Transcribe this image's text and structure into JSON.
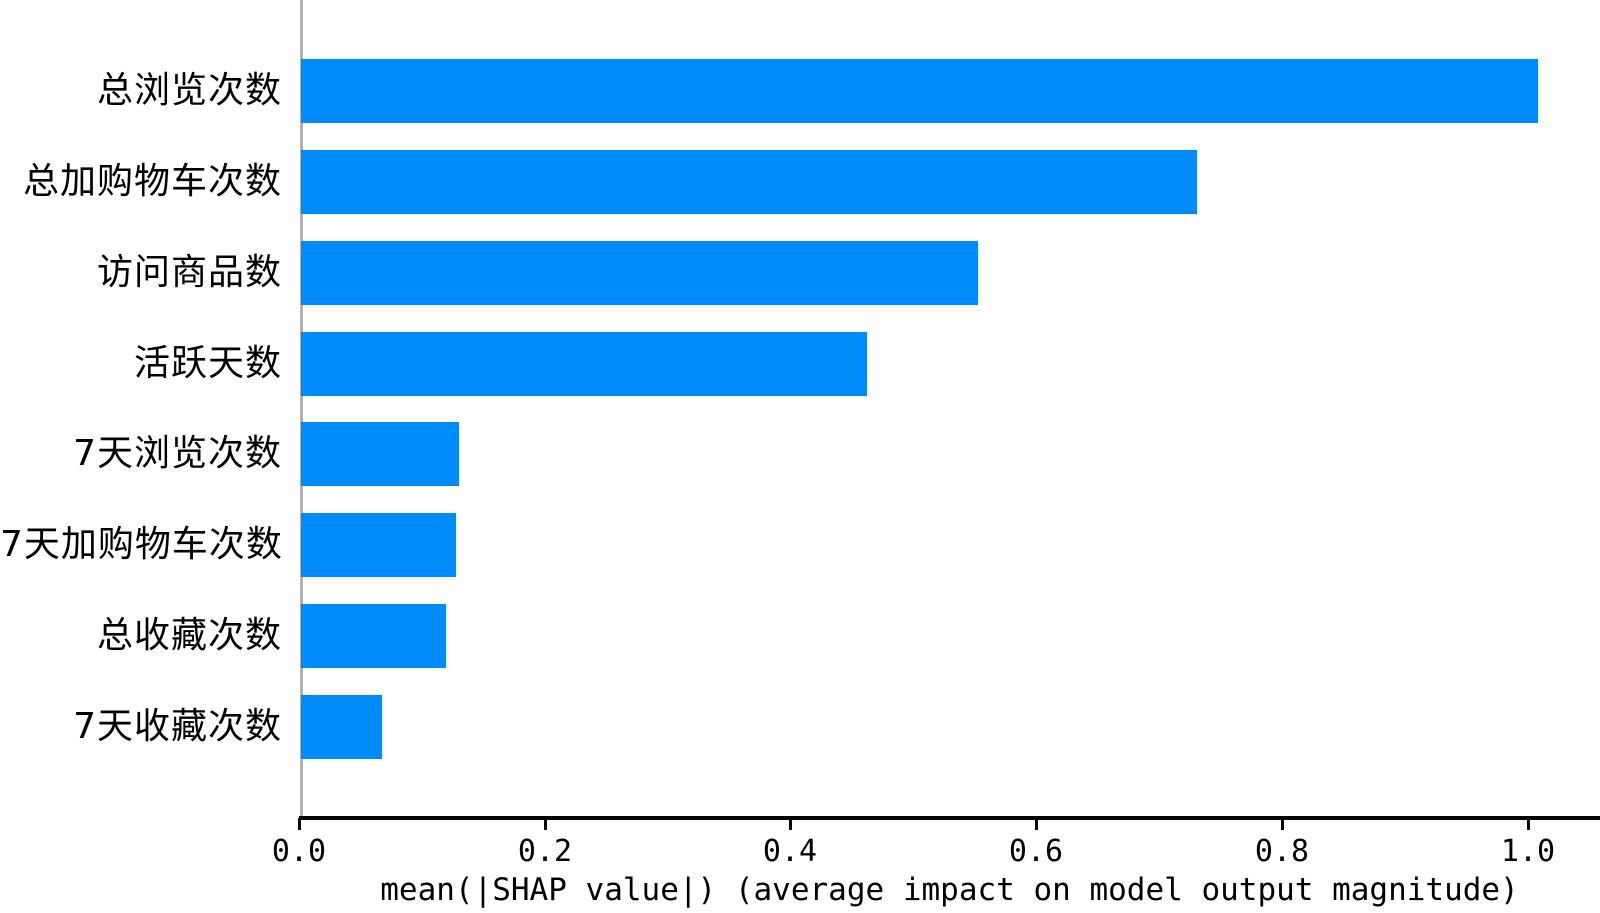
{
  "chart_data": {
    "type": "bar",
    "orientation": "horizontal",
    "title": "",
    "xlabel": "mean(|SHAP value|) (average impact on model output magnitude)",
    "ylabel": "",
    "categories": [
      "总浏览次数",
      "总加购物车次数",
      "访问商品数",
      "活跃天数",
      "7天浏览次数",
      "7天加购物车次数",
      "总收藏次数",
      "7天收藏次数"
    ],
    "values": [
      1.007,
      0.729,
      0.551,
      0.461,
      0.129,
      0.126,
      0.118,
      0.066
    ],
    "xticks": [
      0.0,
      0.2,
      0.4,
      0.6,
      0.8,
      1.0
    ],
    "xtick_labels": [
      "0.0",
      "0.2",
      "0.4",
      "0.6",
      "0.8",
      "1.0"
    ],
    "xlim": [
      0,
      1.059
    ],
    "grid": false,
    "legend_position": "none",
    "colors": {
      "bar": "#008bfb",
      "left_spine": "#b3b3b3",
      "axis": "#000000",
      "text": "#000000",
      "background": "#ffffff"
    }
  }
}
